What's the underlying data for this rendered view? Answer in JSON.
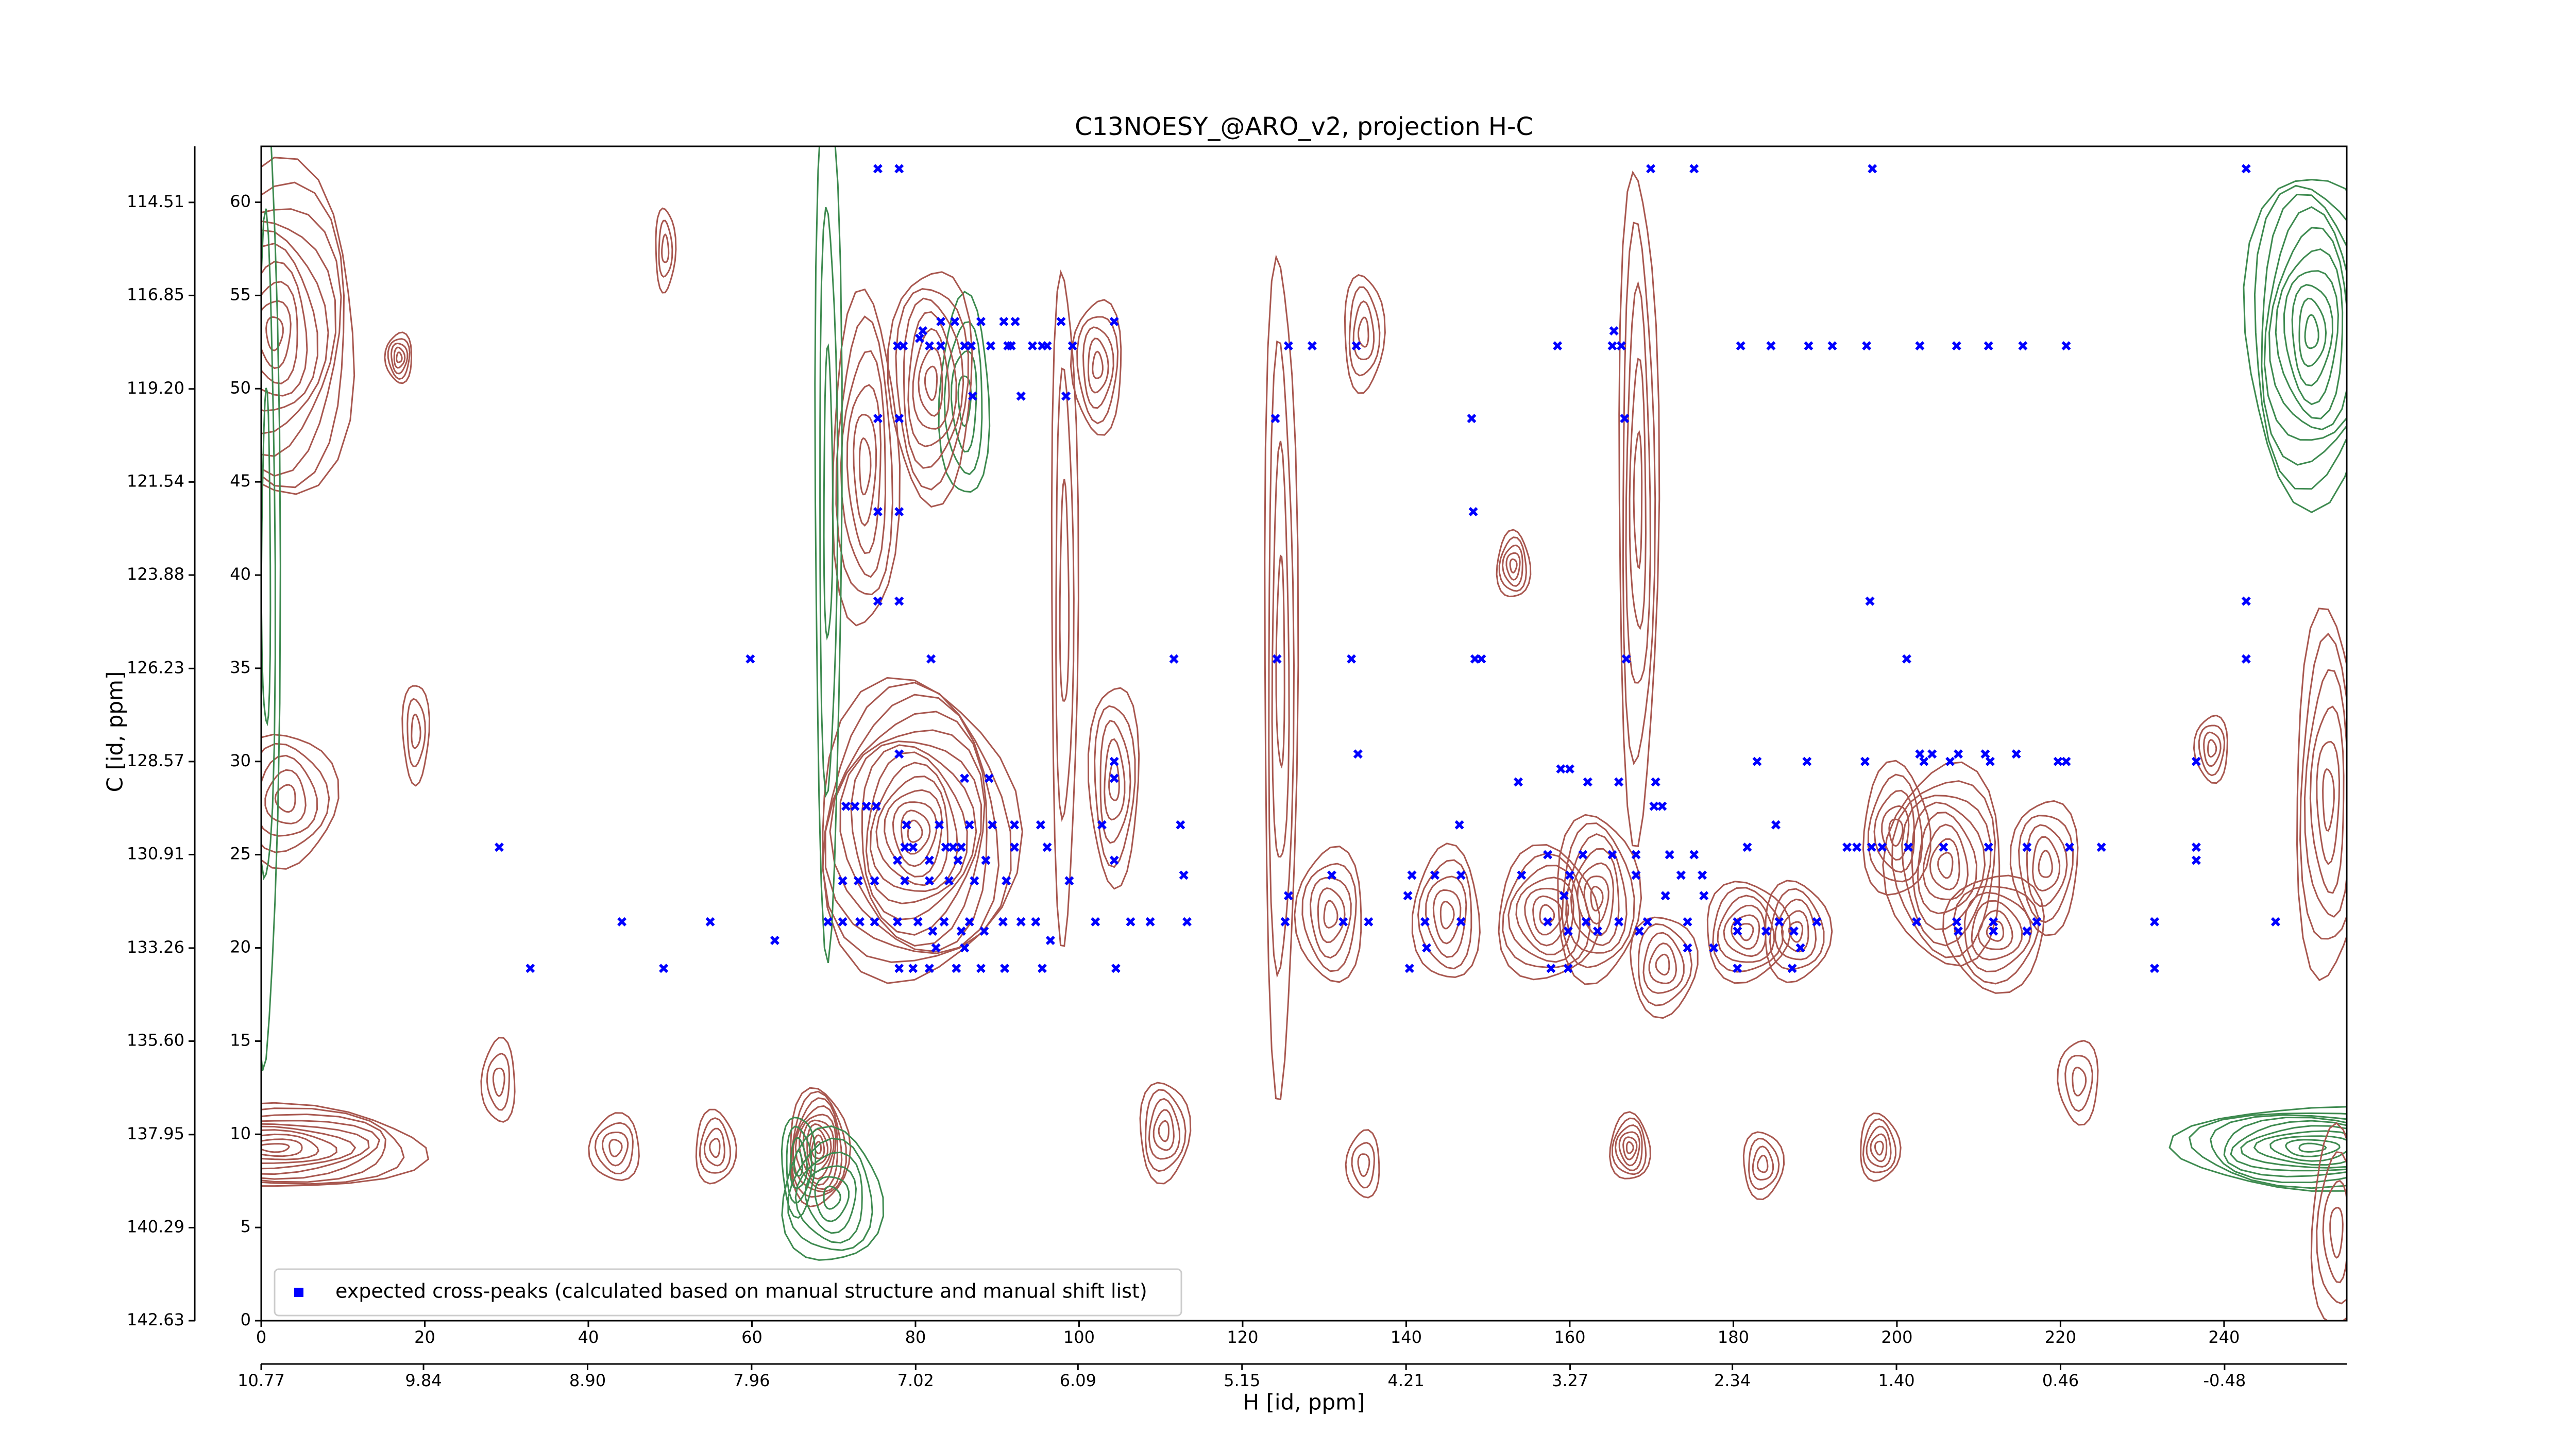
{
  "chart_data": {
    "type": "scatter",
    "title": "C13NOESY_@ARO_v2, projection H-C",
    "x_label": "H [id, ppm]",
    "y_label": "C [id, ppm]",
    "xlim": [
      0,
      255
    ],
    "ylim": [
      0,
      63
    ],
    "xticks": [
      0,
      20,
      40,
      60,
      80,
      100,
      120,
      140,
      160,
      180,
      200,
      220,
      240
    ],
    "yticks": [
      0,
      5,
      10,
      15,
      20,
      25,
      30,
      35,
      40,
      45,
      50,
      55,
      60
    ],
    "x2lim": [
      10.77,
      -1.18
    ],
    "x2ticks": [
      10.77,
      9.84,
      {
        "value": 8.9,
        "label": "8.90"
      },
      7.96,
      7.02,
      6.09,
      5.15,
      4.21,
      3.27,
      2.34,
      {
        "value": 1.4,
        "label": "1.40"
      },
      0.46,
      -0.48
    ],
    "y2lim": [
      142.63,
      113.1
    ],
    "y2ticks": [
      142.63,
      140.29,
      137.95,
      {
        "value": 135.6,
        "label": "135.60"
      },
      133.26,
      130.91,
      128.57,
      126.23,
      123.88,
      121.54,
      {
        "value": 119.2,
        "label": "119.20"
      },
      116.85,
      114.51
    ],
    "legend": "lower left",
    "series": [
      {
        "name": "expected cross-peaks (calculated based on manual structure and manual shift list)",
        "color": "#0000ff",
        "x": [
          75.4,
          78,
          169.9,
          175.2,
          197,
          242.7,
          83.1,
          84.8,
          88,
          90.8,
          92.2,
          97.8,
          104.3,
          80.9,
          165.4,
          80.5,
          77.8,
          78.5,
          81.7,
          83.1,
          86,
          86.8,
          89.2,
          91.3,
          91.7,
          94.3,
          95.5,
          96.1,
          99.2,
          125.6,
          128.5,
          133.9,
          158.5,
          165.2,
          166.3,
          180.9,
          184.6,
          189.2,
          192.1,
          196.3,
          202.8,
          207.3,
          211.2,
          215.4,
          220.7,
          92.9,
          98.4,
          87,
          75.4,
          78,
          124,
          148,
          166.7,
          75.4,
          78,
          148.2,
          75.4,
          78,
          196.7,
          242.7,
          59.8,
          81.9,
          111.6,
          124.2,
          133.3,
          148.4,
          149.2,
          166.9,
          201.2,
          242.7,
          78,
          134.1,
          202.8,
          204.3,
          207.5,
          210.8,
          214.6,
          104.3,
          182.9,
          189,
          196.1,
          203.3,
          206.5,
          211.4,
          219.7,
          220.7,
          236.6,
          86,
          89,
          104.3,
          158.9,
          160,
          153.7,
          162.2,
          166,
          170.5,
          71.5,
          72.6,
          74,
          75.2,
          170.3,
          171.3,
          78.9,
          82.9,
          86.6,
          89.4,
          92.1,
          95.3,
          102.8,
          112.4,
          146.5,
          185.2,
          29.1,
          78.7,
          79.7,
          83.7,
          84.6,
          85.6,
          92.1,
          96.1,
          181.7,
          193.9,
          195.1,
          196.9,
          198.2,
          201.4,
          205.7,
          211.2,
          215.9,
          221.1,
          225,
          236.6,
          157.3,
          161.6,
          165.2,
          168.1,
          172.2,
          175.2,
          77.8,
          81.7,
          85.2,
          88.6,
          104.3,
          236.6,
          112.8,
          130.9,
          140.7,
          143.5,
          146.7,
          154.1,
          160,
          168.1,
          173.6,
          176.2,
          71.1,
          73,
          75,
          78.7,
          81.7,
          84.1,
          87.2,
          91.1,
          98.8,
          125.6,
          140.2,
          159.3,
          171.7,
          176.4,
          44.1,
          54.9,
          69.3,
          71.1,
          73.2,
          75,
          77.8,
          80.3,
          83.5,
          86.6,
          90.7,
          92.9,
          94.7,
          102,
          106.3,
          108.7,
          113.2,
          125.2,
          132.3,
          135.4,
          142.3,
          146.7,
          157.3,
          162,
          166,
          169.5,
          174.4,
          180.5,
          185.6,
          190.2,
          202.4,
          207.3,
          211.8,
          217.1,
          231.5,
          246.3,
          82.1,
          85.6,
          88.4,
          159.8,
          163.4,
          168.5,
          180.5,
          184,
          187.4,
          207.5,
          211.8,
          215.9,
          62.8,
          96.5,
          82.5,
          86,
          142.5,
          174.4,
          177.6,
          188.2,
          32.9,
          49.2,
          78,
          79.7,
          81.7,
          85,
          88,
          90.9,
          95.5,
          104.5,
          140.4,
          157.7,
          159.8,
          180.5,
          187.2,
          231.5
        ],
        "values": [
          61.8,
          61.8,
          61.8,
          61.8,
          61.8,
          61.8,
          53.6,
          53.6,
          53.6,
          53.6,
          53.6,
          53.6,
          53.6,
          53.1,
          53.1,
          52.7,
          52.3,
          52.3,
          52.3,
          52.3,
          52.3,
          52.3,
          52.3,
          52.3,
          52.3,
          52.3,
          52.3,
          52.3,
          52.3,
          52.3,
          52.3,
          52.3,
          52.3,
          52.3,
          52.3,
          52.3,
          52.3,
          52.3,
          52.3,
          52.3,
          52.3,
          52.3,
          52.3,
          52.3,
          52.3,
          49.6,
          49.6,
          49.6,
          48.4,
          48.4,
          48.4,
          48.4,
          48.4,
          43.4,
          43.4,
          43.4,
          38.6,
          38.6,
          38.6,
          38.6,
          35.5,
          35.5,
          35.5,
          35.5,
          35.5,
          35.5,
          35.5,
          35.5,
          35.5,
          35.5,
          30.4,
          30.4,
          30.4,
          30.4,
          30.4,
          30.4,
          30.4,
          30,
          30,
          30,
          30,
          30,
          30,
          30,
          30,
          30,
          30,
          29.1,
          29.1,
          29.1,
          29.6,
          29.6,
          28.9,
          28.9,
          28.9,
          28.9,
          27.6,
          27.6,
          27.6,
          27.6,
          27.6,
          27.6,
          26.6,
          26.6,
          26.6,
          26.6,
          26.6,
          26.6,
          26.6,
          26.6,
          26.6,
          26.6,
          25.4,
          25.4,
          25.4,
          25.4,
          25.4,
          25.4,
          25.4,
          25.4,
          25.4,
          25.4,
          25.4,
          25.4,
          25.4,
          25.4,
          25.4,
          25.4,
          25.4,
          25.4,
          25.4,
          25.4,
          25,
          25,
          25,
          25,
          25,
          25,
          24.7,
          24.7,
          24.7,
          24.7,
          24.7,
          24.7,
          23.9,
          23.9,
          23.9,
          23.9,
          23.9,
          23.9,
          23.9,
          23.9,
          23.9,
          23.9,
          23.6,
          23.6,
          23.6,
          23.6,
          23.6,
          23.6,
          23.6,
          23.6,
          23.6,
          22.8,
          22.8,
          22.8,
          22.8,
          22.8,
          21.4,
          21.4,
          21.4,
          21.4,
          21.4,
          21.4,
          21.4,
          21.4,
          21.4,
          21.4,
          21.4,
          21.4,
          21.4,
          21.4,
          21.4,
          21.4,
          21.4,
          21.4,
          21.4,
          21.4,
          21.4,
          21.4,
          21.4,
          21.4,
          21.4,
          21.4,
          21.4,
          21.4,
          21.4,
          21.4,
          21.4,
          21.4,
          21.4,
          21.4,
          21.4,
          21.4,
          20.9,
          20.9,
          20.9,
          20.9,
          20.9,
          20.9,
          20.9,
          20.9,
          20.9,
          20.9,
          20.9,
          20.9,
          20.4,
          20.4,
          20,
          20,
          20,
          20,
          20,
          20,
          18.9,
          18.9,
          18.9,
          18.9,
          18.9,
          18.9,
          18.9,
          18.9,
          18.9,
          18.9,
          18.9,
          18.9,
          18.9,
          18.9,
          18.9,
          18.9
        ]
      }
    ]
  }
}
